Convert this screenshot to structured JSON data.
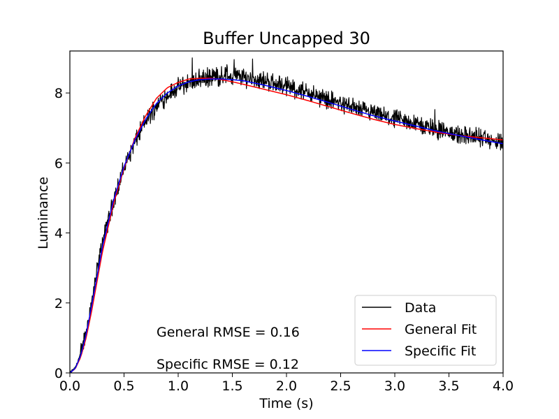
{
  "chart_data": {
    "type": "line",
    "title": "Buffer Uncapped 30",
    "xlabel": "Time (s)",
    "ylabel": "Luminance",
    "xlim": [
      0,
      4.0
    ],
    "ylim": [
      0,
      9.2
    ],
    "xticks": [
      "0.0",
      "0.5",
      "1.0",
      "1.5",
      "2.0",
      "2.5",
      "3.0",
      "3.5",
      "4.0"
    ],
    "xtick_values": [
      0,
      0.5,
      1.0,
      1.5,
      2.0,
      2.5,
      3.0,
      3.5,
      4.0
    ],
    "yticks": [
      "0",
      "2",
      "4",
      "6",
      "8"
    ],
    "ytick_values": [
      0,
      2,
      4,
      6,
      8
    ],
    "grid": false,
    "legend_position": "lower-right",
    "series": [
      {
        "name": "Data",
        "color": "#000000",
        "noisy": true,
        "x": [
          0,
          0.05,
          0.1,
          0.15,
          0.2,
          0.25,
          0.3,
          0.4,
          0.5,
          0.6,
          0.7,
          0.8,
          0.9,
          1.0,
          1.1,
          1.2,
          1.3,
          1.4,
          1.5,
          1.6,
          1.8,
          2.0,
          2.2,
          2.4,
          2.6,
          2.8,
          3.0,
          3.2,
          3.4,
          3.6,
          3.8,
          4.0
        ],
        "y": [
          0,
          0.15,
          0.55,
          1.2,
          2.0,
          2.9,
          3.7,
          4.9,
          5.85,
          6.6,
          7.2,
          7.65,
          7.95,
          8.15,
          8.3,
          8.4,
          8.45,
          8.5,
          8.5,
          8.45,
          8.35,
          8.2,
          8.0,
          7.8,
          7.6,
          7.4,
          7.25,
          7.1,
          6.95,
          6.8,
          6.7,
          6.55
        ]
      },
      {
        "name": "General Fit",
        "color": "#ff0000",
        "x": [
          0,
          0.05,
          0.1,
          0.15,
          0.2,
          0.25,
          0.3,
          0.4,
          0.5,
          0.6,
          0.7,
          0.8,
          0.9,
          1.0,
          1.1,
          1.2,
          1.3,
          1.4,
          1.5,
          1.6,
          1.8,
          2.0,
          2.2,
          2.4,
          2.6,
          2.8,
          3.0,
          3.2,
          3.4,
          3.6,
          3.8,
          4.0
        ],
        "y": [
          0,
          0.12,
          0.45,
          1.0,
          1.75,
          2.6,
          3.45,
          4.8,
          5.85,
          6.7,
          7.35,
          7.85,
          8.15,
          8.3,
          8.4,
          8.42,
          8.42,
          8.38,
          8.32,
          8.25,
          8.1,
          7.95,
          7.78,
          7.6,
          7.42,
          7.25,
          7.1,
          6.98,
          6.87,
          6.78,
          6.72,
          6.66
        ]
      },
      {
        "name": "Specific Fit",
        "color": "#0000ff",
        "x": [
          0,
          0.05,
          0.1,
          0.15,
          0.2,
          0.25,
          0.3,
          0.4,
          0.5,
          0.6,
          0.7,
          0.8,
          0.9,
          1.0,
          1.1,
          1.2,
          1.3,
          1.4,
          1.5,
          1.6,
          1.8,
          2.0,
          2.2,
          2.4,
          2.6,
          2.8,
          3.0,
          3.2,
          3.4,
          3.6,
          3.8,
          4.0
        ],
        "y": [
          0,
          0.13,
          0.5,
          1.1,
          1.9,
          2.75,
          3.6,
          4.9,
          5.9,
          6.65,
          7.25,
          7.7,
          8.0,
          8.2,
          8.32,
          8.38,
          8.4,
          8.4,
          8.38,
          8.35,
          8.22,
          8.07,
          7.9,
          7.72,
          7.53,
          7.35,
          7.2,
          7.05,
          6.9,
          6.78,
          6.66,
          6.55
        ]
      }
    ],
    "annotations": [
      {
        "text": "General RMSE = 0.16",
        "x": 0.8,
        "y": 1.0
      },
      {
        "text": "Specific RMSE = 0.12",
        "x": 0.8,
        "y": 0.1
      }
    ]
  }
}
